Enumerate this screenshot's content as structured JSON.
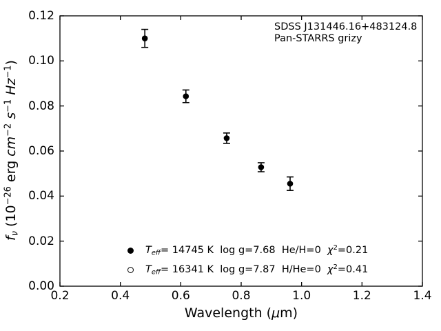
{
  "figure": {
    "background": "#ffffff",
    "axis_color": "#000000",
    "annotation": {
      "line1": "SDSS J131446.16+483124.8",
      "line2": "Pan-STARRS grizy"
    },
    "axes": {
      "xlabel": {
        "pre": "Wavelength (",
        "mu": "μ",
        "post": "m)"
      },
      "ylabel": {
        "f": "f",
        "nu": "ν",
        "open": " (10",
        "exp": "−26",
        "erg": " erg ",
        "cm": "cm",
        "cm_exp": "−2",
        "sp1": " ",
        "s": "s",
        "s_exp": "−1",
        "sp2": " ",
        "hz": "Hz",
        "hz_exp": "−1",
        "close": ")"
      }
    },
    "legend": {
      "entries": [
        {
          "marker": "filled-circle",
          "t": "T",
          "t_sub": "eff",
          "seg1": "= 14745 K  log g=7.68  He/H=0  ",
          "chi": "χ",
          "chi_sup": "2",
          "seg2": "=0.21"
        },
        {
          "marker": "open-circle",
          "t": "T",
          "t_sub": "eff",
          "seg1": "= 16341 K  log g=7.87  H/He=0  ",
          "chi": "χ",
          "chi_sup": "2",
          "seg2": "=0.41"
        }
      ]
    }
  },
  "chart_data": {
    "type": "scatter",
    "title": "",
    "xlabel": "Wavelength (μm)",
    "ylabel": "f_ν (10^−26 erg cm^−2 s^−1 Hz^−1)",
    "xlim": [
      0.2,
      1.4
    ],
    "ylim": [
      0.0,
      0.12
    ],
    "x_ticks": [
      0.2,
      0.4,
      0.6,
      0.8,
      1.0,
      1.2,
      1.4
    ],
    "x_tick_labels": [
      "0.2",
      "0.4",
      "0.6",
      "0.8",
      "1.0",
      "1.2",
      "1.4"
    ],
    "y_ticks": [
      0.0,
      0.02,
      0.04,
      0.06,
      0.08,
      0.1,
      0.12
    ],
    "y_tick_labels": [
      "0.00",
      "0.02",
      "0.04",
      "0.06",
      "0.08",
      "0.10",
      "0.12"
    ],
    "grid": false,
    "tick_direction": "in",
    "legend_position": "lower-center-inside",
    "marker_color": "#000000",
    "series": [
      {
        "name": "Teff= 14745 K  log g=7.68  He/H=0  chi^2=0.21",
        "marker": "filled-circle",
        "color": "#000000",
        "points": [
          {
            "x": 0.481,
            "y": 0.11,
            "err": 0.004
          },
          {
            "x": 0.617,
            "y": 0.0843,
            "err": 0.0028
          },
          {
            "x": 0.752,
            "y": 0.0657,
            "err": 0.0023
          },
          {
            "x": 0.866,
            "y": 0.0528,
            "err": 0.002
          },
          {
            "x": 0.962,
            "y": 0.0455,
            "err": 0.003
          }
        ]
      },
      {
        "name": "Teff= 16341 K  log g=7.87  H/He=0  chi^2=0.41",
        "marker": "open-circle",
        "color": "#000000",
        "points": []
      }
    ],
    "annotations": [
      "SDSS J131446.16+483124.8",
      "Pan-STARRS grizy"
    ]
  }
}
